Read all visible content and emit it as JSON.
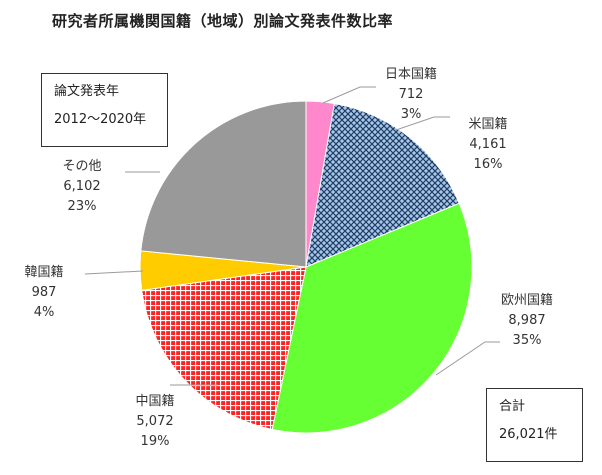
{
  "title": "研究者所属機関国籍（地域）別論文発表件数比率",
  "period_box": {
    "label": "論文発表年",
    "value": "2012～2020年"
  },
  "total_box": {
    "label": "合計",
    "value": "26,021件"
  },
  "colors": {
    "japan": "#ff88cc",
    "usa": "#a8c8e8",
    "europe": "#66ff33",
    "china": "#ff2222",
    "korea": "#ffcc00",
    "other": "#999999"
  },
  "chart_data": {
    "type": "pie",
    "title": "研究者所属機関国籍（地域）別論文発表件数比率",
    "total": "26,021件",
    "slices": [
      {
        "name": "日本国籍",
        "value": 712,
        "value_label": "712",
        "percent": "3%",
        "color": "#ff88cc",
        "pattern": "none"
      },
      {
        "name": "米国籍",
        "value": 4161,
        "value_label": "4,161",
        "percent": "16%",
        "color": "#a8c8e8",
        "pattern": "crosshatch"
      },
      {
        "name": "欧州国籍",
        "value": 8987,
        "value_label": "8,987",
        "percent": "35%",
        "color": "#66ff33",
        "pattern": "none"
      },
      {
        "name": "中国籍",
        "value": 5072,
        "value_label": "5,072",
        "percent": "19%",
        "color": "#ff2222",
        "pattern": "grid"
      },
      {
        "name": "韓国籍",
        "value": 987,
        "value_label": "987",
        "percent": "4%",
        "color": "#ffcc00",
        "pattern": "none"
      },
      {
        "name": "その他",
        "value": 6102,
        "value_label": "6,102",
        "percent": "23%",
        "color": "#999999",
        "pattern": "none"
      }
    ],
    "start": "12 o'clock",
    "direction": "clockwise"
  }
}
